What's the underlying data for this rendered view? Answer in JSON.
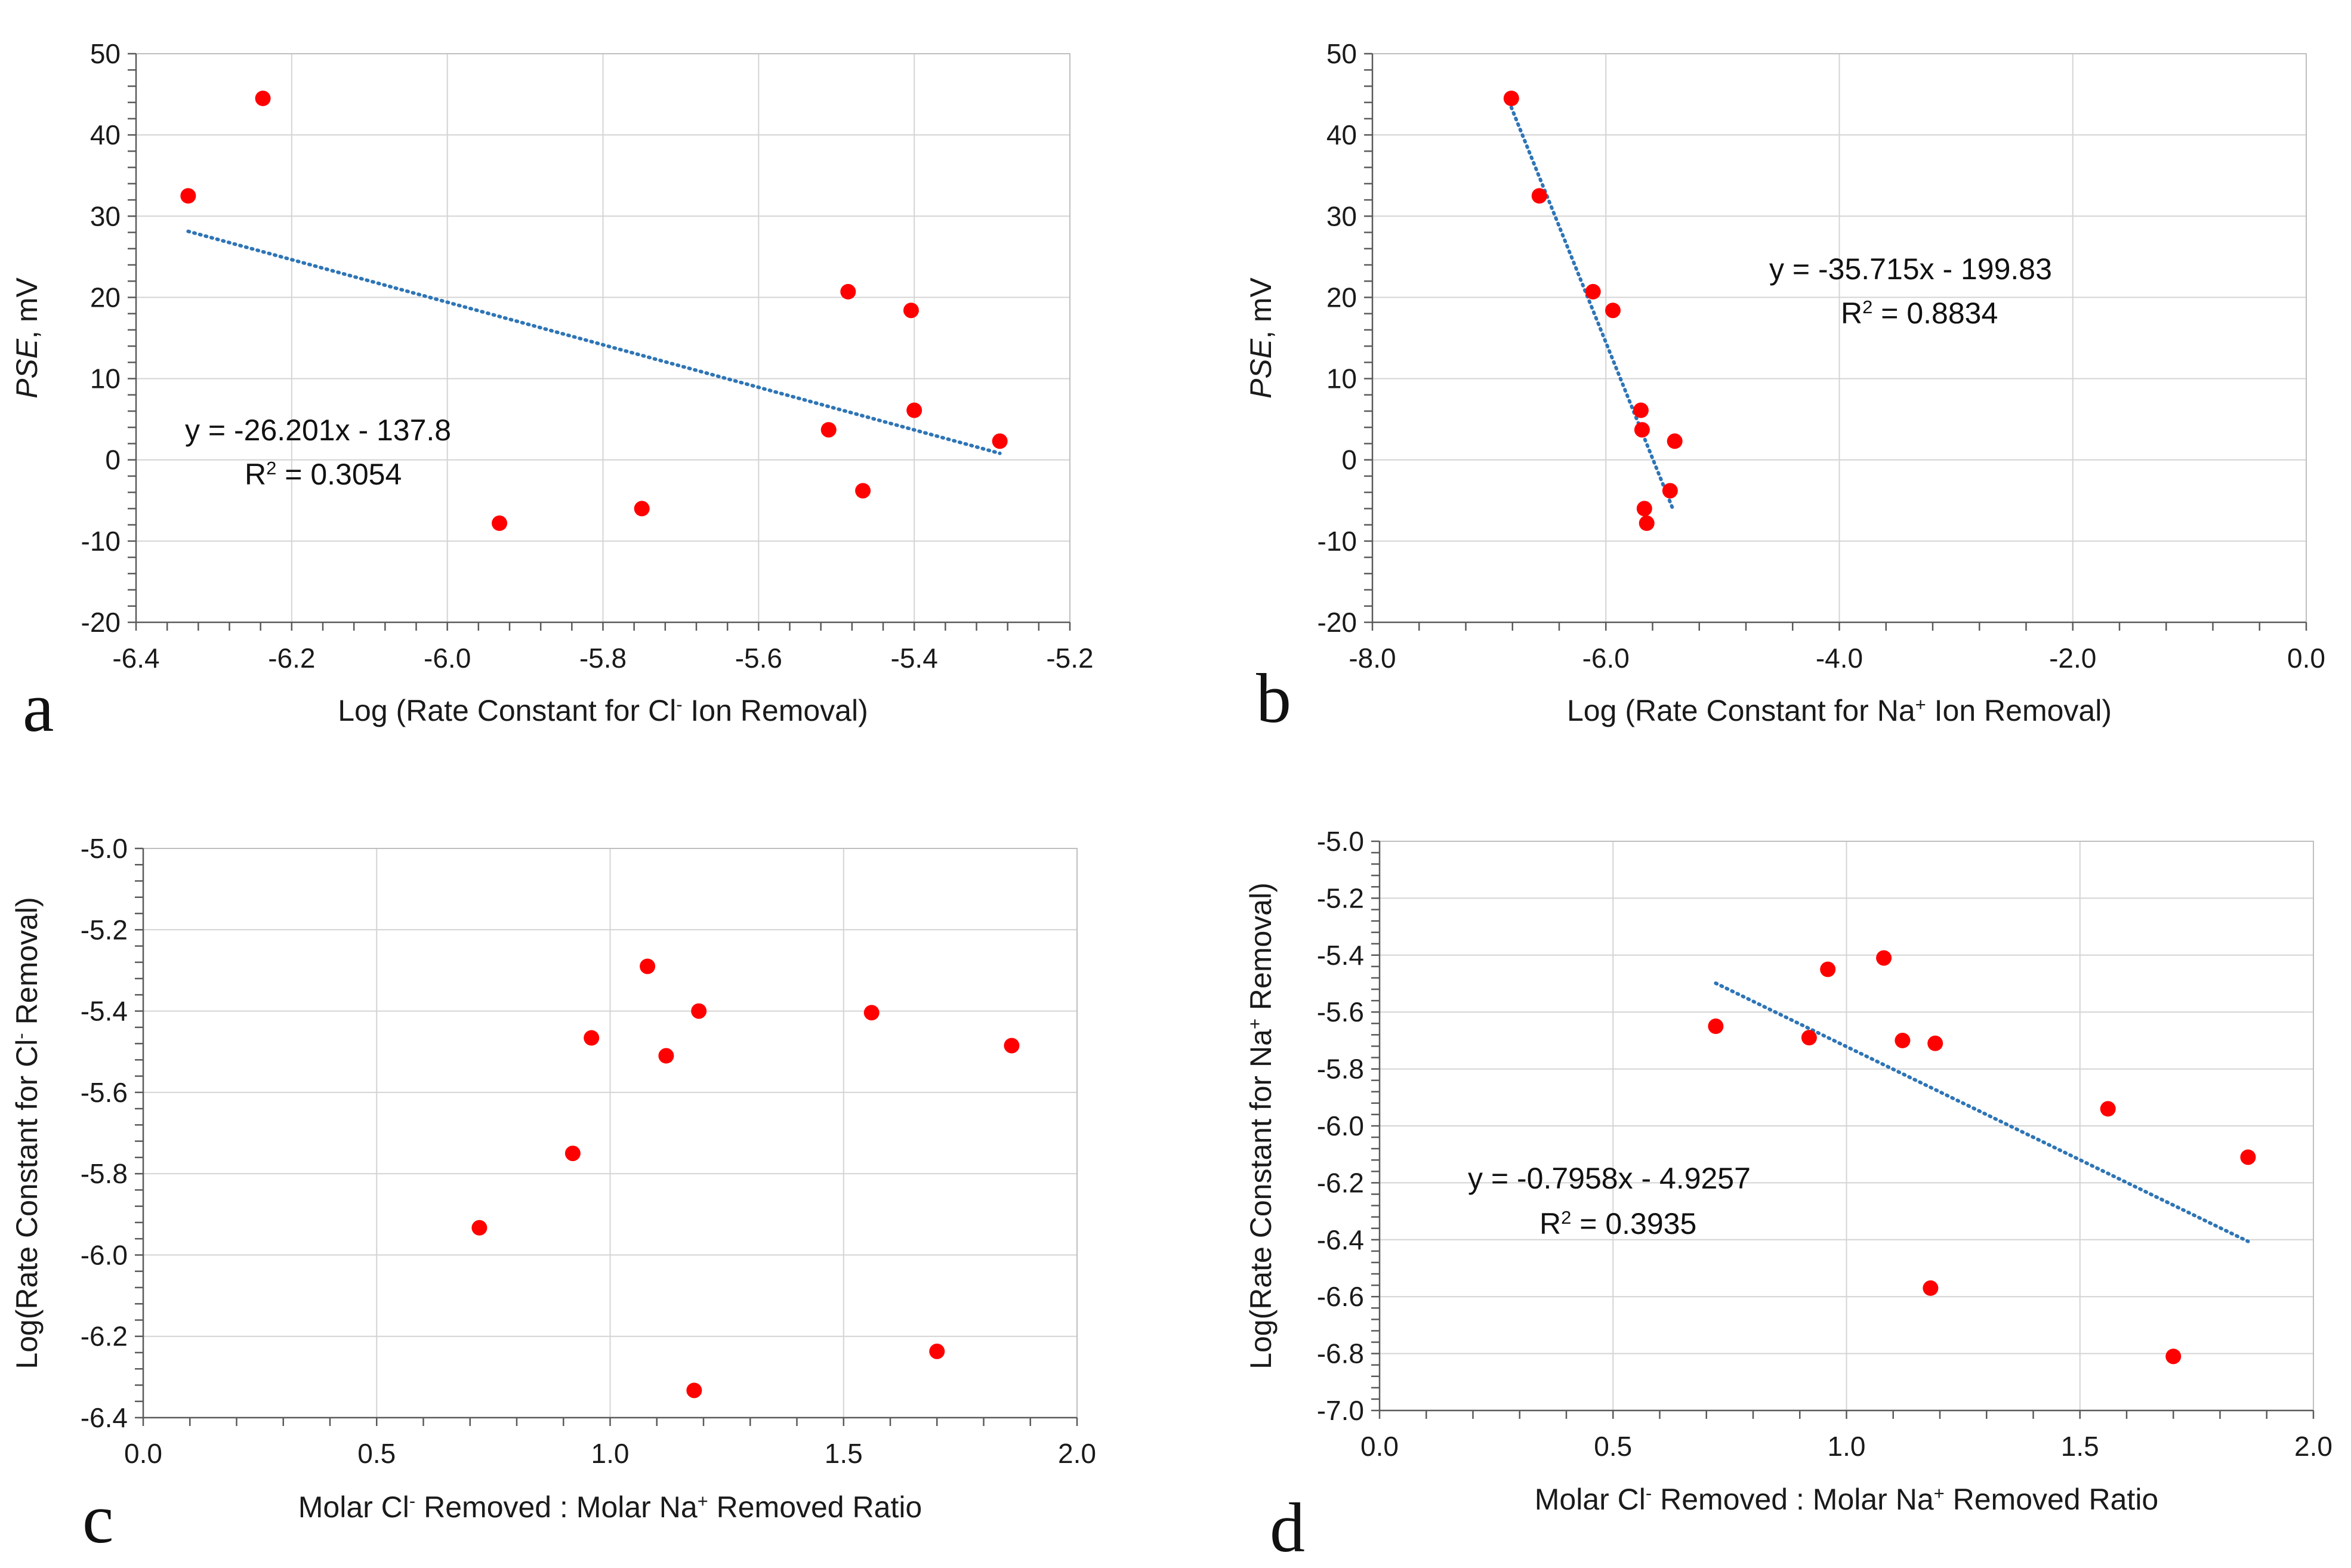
{
  "chart_data": [
    {
      "type": "scatter",
      "panel_label": "a",
      "xlabel": "Log (Rate Constant for Cl⁻ Ion Removal)",
      "ylabel": "PSE, mV",
      "xlim": [
        -6.4,
        -5.2
      ],
      "ylim": [
        -20,
        50
      ],
      "xticks": [
        "-6.4",
        "-6.2",
        "-6.0",
        "-5.8",
        "-5.6",
        "-5.4",
        "-5.2"
      ],
      "yticks": [
        "50",
        "40",
        "30",
        "20",
        "10",
        "0",
        "-10",
        "-20"
      ],
      "points": [
        {
          "x": -6.333,
          "y": 32.5
        },
        {
          "x": -6.237,
          "y": 44.5
        },
        {
          "x": -5.933,
          "y": -7.8
        },
        {
          "x": -5.75,
          "y": -6.0
        },
        {
          "x": -5.51,
          "y": 3.7
        },
        {
          "x": -5.485,
          "y": 20.7
        },
        {
          "x": -5.466,
          "y": -3.8
        },
        {
          "x": -5.404,
          "y": 18.4
        },
        {
          "x": -5.4,
          "y": 6.1
        },
        {
          "x": -5.29,
          "y": 2.3
        }
      ],
      "trendline": {
        "x": [
          -6.333,
          -5.29
        ],
        "slope": -26.201,
        "intercept": -137.8
      },
      "equation_line1": "y = -26.201x - 137.8",
      "equation_line2": "R² = 0.3054",
      "marker_color": "#ff0000",
      "trend_color": "#2e75b6"
    },
    {
      "type": "scatter",
      "panel_label": "b",
      "xlabel": "Log (Rate Constant for Na⁺ Ion Removal)",
      "ylabel": "PSE, mV",
      "xlim": [
        -8.0,
        0.0
      ],
      "ylim": [
        -20,
        50
      ],
      "xticks": [
        "-8.0",
        "-6.0",
        "-4.0",
        "-2.0",
        "0.0"
      ],
      "yticks": [
        "50",
        "40",
        "30",
        "20",
        "10",
        "0",
        "-10",
        "-20"
      ],
      "points": [
        {
          "x": -6.81,
          "y": 44.5
        },
        {
          "x": -6.57,
          "y": 32.5
        },
        {
          "x": -6.11,
          "y": 20.7
        },
        {
          "x": -5.94,
          "y": 18.4
        },
        {
          "x": -5.7,
          "y": 6.1
        },
        {
          "x": -5.69,
          "y": 3.7
        },
        {
          "x": -5.41,
          "y": 2.3
        },
        {
          "x": -5.45,
          "y": -3.8
        },
        {
          "x": -5.67,
          "y": -6.0
        },
        {
          "x": -5.65,
          "y": -7.8
        }
      ],
      "trendline": {
        "x": [
          -6.81,
          -5.42
        ],
        "slope": -35.715,
        "intercept": -199.83
      },
      "equation_line1": "y = -35.715x - 199.83",
      "equation_line2": "R² = 0.8834",
      "marker_color": "#ff0000",
      "trend_color": "#2e75b6"
    },
    {
      "type": "scatter",
      "panel_label": "c",
      "xlabel": "Molar Cl⁻ Removed : Molar Na⁺ Removed Ratio",
      "ylabel": "Log(Rate Constant for Cl⁻ Removal)",
      "xlim": [
        0.0,
        2.0
      ],
      "ylim": [
        -6.4,
        -5.0
      ],
      "xticks": [
        "0.0",
        "0.5",
        "1.0",
        "1.5",
        "2.0"
      ],
      "yticks": [
        "-5.0",
        "-5.2",
        "-5.4",
        "-5.6",
        "-5.8",
        "-6.0",
        "-6.2",
        "-6.4"
      ],
      "points": [
        {
          "x": 0.72,
          "y": -5.933
        },
        {
          "x": 0.92,
          "y": -5.75
        },
        {
          "x": 0.96,
          "y": -5.466
        },
        {
          "x": 1.08,
          "y": -5.29
        },
        {
          "x": 1.12,
          "y": -5.51
        },
        {
          "x": 1.18,
          "y": -6.333
        },
        {
          "x": 1.19,
          "y": -5.4
        },
        {
          "x": 1.56,
          "y": -5.404
        },
        {
          "x": 1.7,
          "y": -6.237
        },
        {
          "x": 1.86,
          "y": -5.485
        }
      ],
      "marker_color": "#ff0000"
    },
    {
      "type": "scatter",
      "panel_label": "d",
      "xlabel": "Molar Cl⁻ Removed : Molar Na⁺ Removed Ratio",
      "ylabel": "Log(Rate Constant for Na⁺ Removal)",
      "xlim": [
        0.0,
        2.0
      ],
      "ylim": [
        -7.0,
        -5.0
      ],
      "xticks": [
        "0.0",
        "0.5",
        "1.0",
        "1.5",
        "2.0"
      ],
      "yticks": [
        "-5.0",
        "-5.2",
        "-5.4",
        "-5.6",
        "-5.8",
        "-6.0",
        "-6.2",
        "-6.4",
        "-6.6",
        "-6.8",
        "-7.0"
      ],
      "points": [
        {
          "x": 0.72,
          "y": -5.65
        },
        {
          "x": 0.92,
          "y": -5.69
        },
        {
          "x": 0.96,
          "y": -5.45
        },
        {
          "x": 1.08,
          "y": -5.41
        },
        {
          "x": 1.12,
          "y": -5.7
        },
        {
          "x": 1.18,
          "y": -6.57
        },
        {
          "x": 1.19,
          "y": -5.71
        },
        {
          "x": 1.56,
          "y": -5.94
        },
        {
          "x": 1.7,
          "y": -6.81
        },
        {
          "x": 1.86,
          "y": -6.11
        }
      ],
      "trendline": {
        "x": [
          0.72,
          1.86
        ],
        "slope": -0.7958,
        "intercept": -4.9257
      },
      "equation_line1": "y = -0.7958x - 4.9257",
      "equation_line2": "R² = 0.3935",
      "marker_color": "#ff0000",
      "trend_color": "#2e75b6"
    }
  ]
}
